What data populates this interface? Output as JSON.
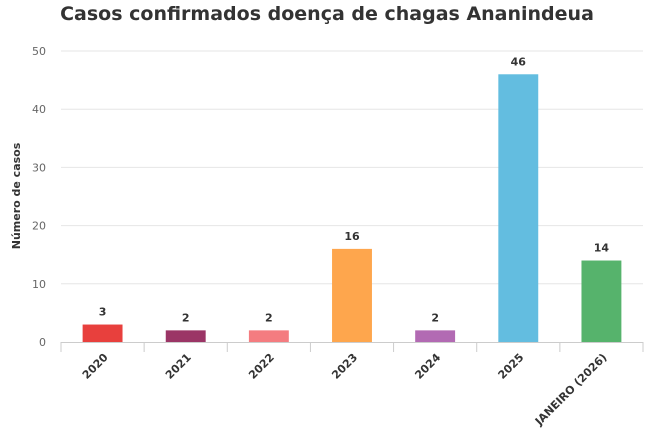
{
  "chart_data": {
    "type": "bar",
    "title": "Casos confirmados doença de chagas Ananindeua",
    "xlabel": "",
    "ylabel": "Número de casos",
    "ylim": [
      0,
      50
    ],
    "yticks": [
      0,
      10,
      20,
      30,
      40,
      50
    ],
    "grid": true,
    "legend": "none",
    "categories": [
      "2020",
      "2021",
      "2022",
      "2023",
      "2024",
      "2025",
      "JANEIRO (2026)"
    ],
    "values": [
      3,
      2,
      2,
      16,
      2,
      46,
      14
    ],
    "colors": [
      "#e8403d",
      "#9b3566",
      "#f47c80",
      "#fea64d",
      "#b26ab3",
      "#63bde0",
      "#56b36c"
    ]
  }
}
